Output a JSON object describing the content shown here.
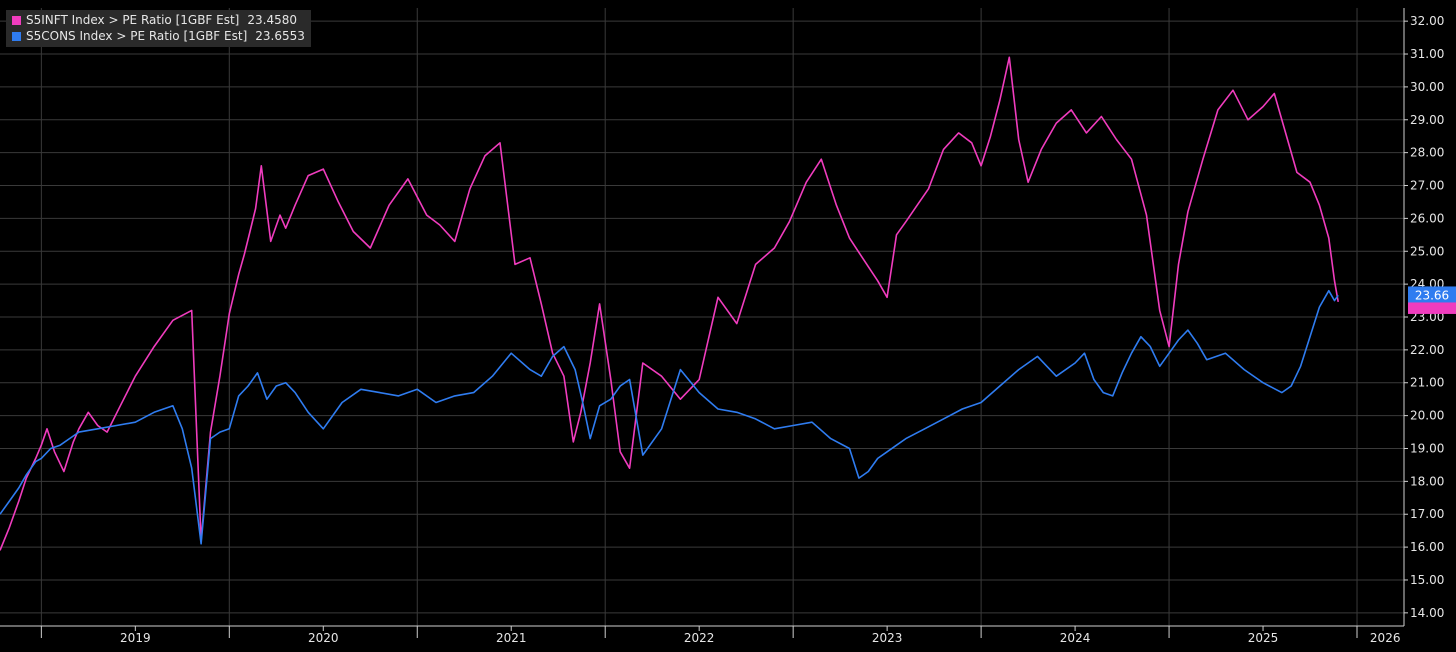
{
  "legend": [
    {
      "label": "S5INFT Index > PE Ratio [1GBF Est]",
      "value": "23.4580",
      "color": "#f03cbe"
    },
    {
      "label": "S5CONS Index > PE Ratio [1GBF Est]",
      "value": "23.6553",
      "color": "#2f7cf0"
    }
  ],
  "last_value_tag": {
    "text": "23.66",
    "color": "#2f7cf0"
  },
  "chart_data": {
    "type": "line",
    "x_labels": [
      "2019",
      "2020",
      "2021",
      "2022",
      "2023",
      "2024",
      "2025",
      "2026"
    ],
    "x_range": [
      2018.78,
      2026.25
    ],
    "ylim": [
      13.6,
      32.4
    ],
    "y_ticks": [
      "14.00",
      "15.00",
      "16.00",
      "17.00",
      "18.00",
      "19.00",
      "20.00",
      "21.00",
      "22.00",
      "23.00",
      "24.00",
      "25.00",
      "26.00",
      "27.00",
      "28.00",
      "29.00",
      "30.00",
      "31.00",
      "32.00"
    ],
    "grid": true,
    "legend_position": "top-left",
    "series": [
      {
        "name": "S5INFT Index > PE Ratio [1GBF Est]",
        "color": "#f03cbe",
        "last_value": 23.458,
        "x": [
          2018.78,
          2018.83,
          2018.88,
          2018.92,
          2018.97,
          2019.0,
          2019.03,
          2019.07,
          2019.12,
          2019.17,
          2019.2,
          2019.25,
          2019.3,
          2019.35,
          2019.42,
          2019.5,
          2019.6,
          2019.7,
          2019.8,
          2019.85,
          2019.9,
          2019.95,
          2020.0,
          2020.05,
          2020.08,
          2020.11,
          2020.14,
          2020.17,
          2020.22,
          2020.27,
          2020.3,
          2020.35,
          2020.42,
          2020.5,
          2020.58,
          2020.66,
          2020.75,
          2020.85,
          2020.95,
          2021.05,
          2021.12,
          2021.2,
          2021.28,
          2021.36,
          2021.44,
          2021.52,
          2021.6,
          2021.66,
          2021.72,
          2021.78,
          2021.83,
          2021.87,
          2021.92,
          2021.97,
          2022.03,
          2022.08,
          2022.13,
          2022.2,
          2022.3,
          2022.4,
          2022.5,
          2022.6,
          2022.7,
          2022.8,
          2022.9,
          2022.98,
          2023.07,
          2023.15,
          2023.23,
          2023.3,
          2023.38,
          2023.45,
          2023.5,
          2023.55,
          2023.6,
          2023.66,
          2023.72,
          2023.8,
          2023.88,
          2023.95,
          2024.0,
          2024.05,
          2024.1,
          2024.15,
          2024.2,
          2024.25,
          2024.32,
          2024.4,
          2024.48,
          2024.56,
          2024.64,
          2024.72,
          2024.8,
          2024.88,
          2024.95,
          2025.0,
          2025.05,
          2025.1,
          2025.18,
          2025.26,
          2025.34,
          2025.42,
          2025.5,
          2025.56,
          2025.62,
          2025.68,
          2025.75,
          2025.8,
          2025.85,
          2025.88,
          2025.9
        ],
        "y": [
          15.9,
          16.6,
          17.4,
          18.1,
          18.7,
          19.1,
          19.6,
          18.9,
          18.3,
          19.2,
          19.6,
          20.1,
          19.7,
          19.5,
          20.3,
          21.2,
          22.1,
          22.9,
          23.2,
          16.2,
          19.5,
          21.2,
          23.1,
          24.3,
          24.9,
          25.6,
          26.3,
          27.6,
          25.3,
          26.1,
          25.7,
          26.4,
          27.3,
          27.5,
          26.5,
          25.6,
          25.1,
          26.4,
          27.2,
          26.1,
          25.8,
          25.3,
          26.9,
          27.9,
          28.3,
          24.6,
          24.8,
          23.4,
          21.9,
          21.2,
          19.2,
          20.1,
          21.6,
          23.4,
          21.1,
          18.9,
          18.4,
          21.6,
          21.2,
          20.5,
          21.1,
          23.6,
          22.8,
          24.6,
          25.1,
          25.9,
          27.1,
          27.8,
          26.4,
          25.4,
          24.7,
          24.1,
          23.6,
          25.5,
          25.9,
          26.4,
          26.9,
          28.1,
          28.6,
          28.3,
          27.6,
          28.5,
          29.6,
          30.9,
          28.4,
          27.1,
          28.1,
          28.9,
          29.3,
          28.6,
          29.1,
          28.4,
          27.8,
          26.1,
          23.2,
          22.1,
          24.6,
          26.2,
          27.8,
          29.3,
          29.9,
          29.0,
          29.4,
          29.8,
          28.6,
          27.4,
          27.1,
          26.4,
          25.4,
          24.1,
          23.46
        ]
      },
      {
        "name": "S5CONS Index > PE Ratio [1GBF Est]",
        "color": "#2f7cf0",
        "last_value": 23.6553,
        "x": [
          2018.78,
          2018.83,
          2018.88,
          2018.92,
          2018.97,
          2019.0,
          2019.05,
          2019.1,
          2019.15,
          2019.2,
          2019.3,
          2019.4,
          2019.5,
          2019.6,
          2019.7,
          2019.75,
          2019.8,
          2019.85,
          2019.9,
          2019.95,
          2020.0,
          2020.05,
          2020.1,
          2020.15,
          2020.2,
          2020.25,
          2020.3,
          2020.35,
          2020.42,
          2020.5,
          2020.6,
          2020.7,
          2020.8,
          2020.9,
          2021.0,
          2021.1,
          2021.2,
          2021.3,
          2021.4,
          2021.5,
          2021.6,
          2021.66,
          2021.72,
          2021.78,
          2021.84,
          2021.88,
          2021.92,
          2021.97,
          2022.03,
          2022.08,
          2022.13,
          2022.2,
          2022.3,
          2022.4,
          2022.5,
          2022.6,
          2022.7,
          2022.8,
          2022.9,
          2023.0,
          2023.1,
          2023.2,
          2023.3,
          2023.35,
          2023.4,
          2023.45,
          2023.5,
          2023.55,
          2023.6,
          2023.7,
          2023.8,
          2023.9,
          2024.0,
          2024.1,
          2024.2,
          2024.3,
          2024.4,
          2024.5,
          2024.55,
          2024.6,
          2024.65,
          2024.7,
          2024.75,
          2024.8,
          2024.85,
          2024.9,
          2024.95,
          2025.0,
          2025.05,
          2025.1,
          2025.15,
          2025.2,
          2025.3,
          2025.4,
          2025.5,
          2025.6,
          2025.65,
          2025.7,
          2025.75,
          2025.8,
          2025.85,
          2025.88,
          2025.9
        ],
        "y": [
          17.0,
          17.4,
          17.8,
          18.2,
          18.6,
          18.7,
          19.0,
          19.1,
          19.3,
          19.5,
          19.6,
          19.7,
          19.8,
          20.1,
          20.3,
          19.6,
          18.4,
          16.1,
          19.3,
          19.5,
          19.6,
          20.6,
          20.9,
          21.3,
          20.5,
          20.9,
          21.0,
          20.7,
          20.1,
          19.6,
          20.4,
          20.8,
          20.7,
          20.6,
          20.8,
          20.4,
          20.6,
          20.7,
          21.2,
          21.9,
          21.4,
          21.2,
          21.8,
          22.1,
          21.4,
          20.4,
          19.3,
          20.3,
          20.5,
          20.9,
          21.1,
          18.8,
          19.6,
          21.4,
          20.7,
          20.2,
          20.1,
          19.9,
          19.6,
          19.7,
          19.8,
          19.3,
          19.0,
          18.1,
          18.3,
          18.7,
          18.9,
          19.1,
          19.3,
          19.6,
          19.9,
          20.2,
          20.4,
          20.9,
          21.4,
          21.8,
          21.2,
          21.6,
          21.9,
          21.1,
          20.7,
          20.6,
          21.3,
          21.9,
          22.4,
          22.1,
          21.5,
          21.9,
          22.3,
          22.6,
          22.2,
          21.7,
          21.9,
          21.4,
          21.0,
          20.7,
          20.9,
          21.5,
          22.4,
          23.3,
          23.8,
          23.5,
          23.66
        ]
      }
    ]
  }
}
